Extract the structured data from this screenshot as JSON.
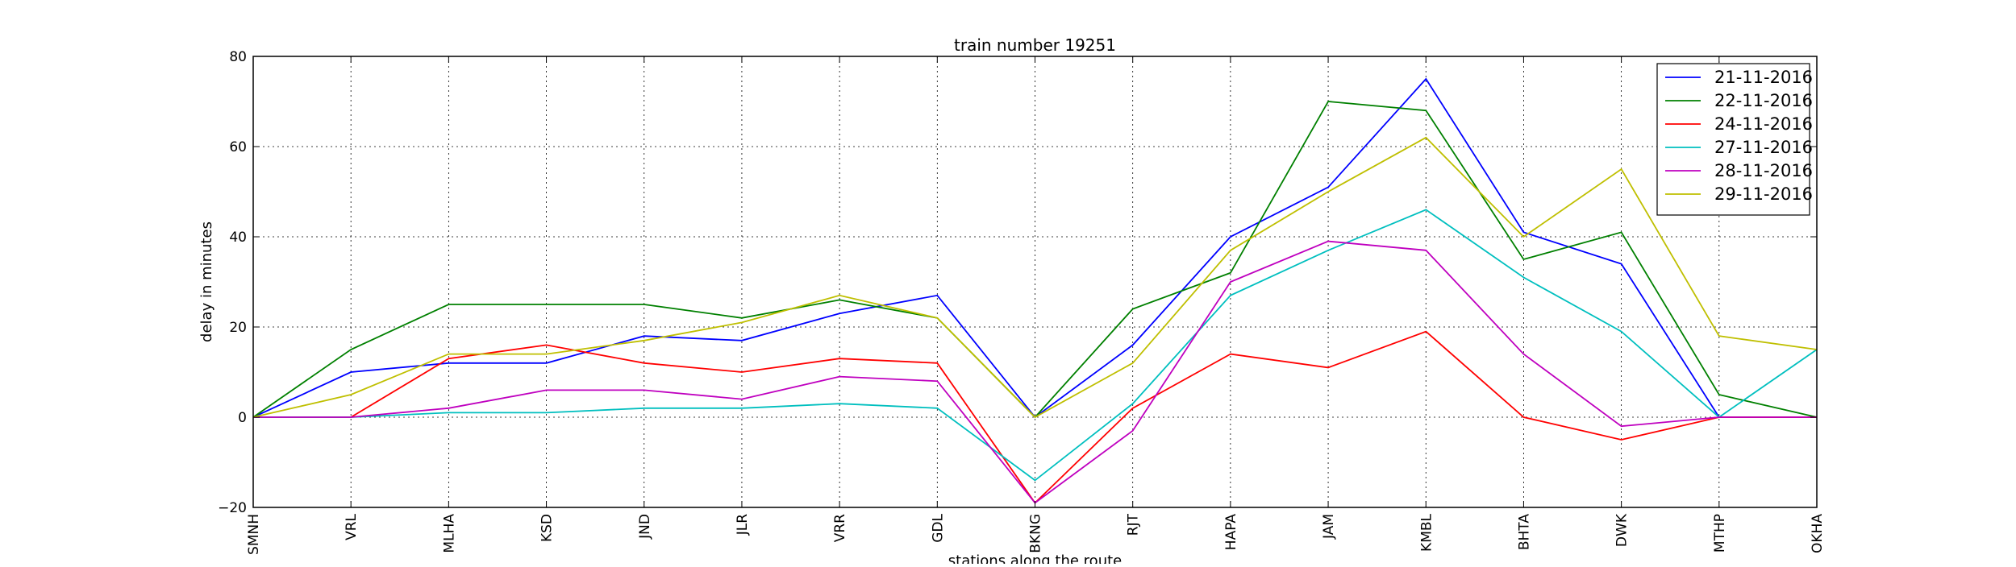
{
  "chart_data": {
    "type": "line",
    "title": "train number 19251",
    "xlabel": "stations along the route",
    "ylabel": "delay in minutes",
    "categories": [
      "SMNH",
      "VRL",
      "MLHA",
      "KSD",
      "JND",
      "JLR",
      "VRR",
      "GDL",
      "BKNG",
      "RJT",
      "HAPA",
      "JAM",
      "KMBL",
      "BHTA",
      "DWK",
      "MTHP",
      "OKHA"
    ],
    "ylim": [
      -20,
      80
    ],
    "yticks": [
      -20,
      0,
      20,
      40,
      60,
      80
    ],
    "grid": true,
    "legend_position": "top-right",
    "series": [
      {
        "name": "21-11-2016",
        "color": "#0000ff",
        "values": [
          0,
          10,
          12,
          12,
          18,
          17,
          23,
          27,
          0,
          16,
          40,
          51,
          75,
          41,
          34,
          0,
          0
        ]
      },
      {
        "name": "22-11-2016",
        "color": "#008000",
        "values": [
          0,
          15,
          25,
          25,
          25,
          22,
          26,
          22,
          0,
          24,
          32,
          70,
          68,
          35,
          41,
          5,
          0
        ]
      },
      {
        "name": "24-11-2016",
        "color": "#ff0000",
        "values": [
          0,
          0,
          13,
          16,
          12,
          10,
          13,
          12,
          -19,
          2,
          14,
          11,
          19,
          0,
          -5,
          0,
          0
        ]
      },
      {
        "name": "27-11-2016",
        "color": "#00bfbf",
        "values": [
          0,
          0,
          1,
          1,
          2,
          2,
          3,
          2,
          -14,
          3,
          27,
          37,
          46,
          31,
          19,
          0,
          15
        ]
      },
      {
        "name": "28-11-2016",
        "color": "#bf00bf",
        "values": [
          0,
          0,
          2,
          6,
          6,
          4,
          9,
          8,
          -19,
          -3,
          30,
          39,
          37,
          14,
          -2,
          0,
          0
        ]
      },
      {
        "name": "29-11-2016",
        "color": "#bfbf00",
        "values": [
          0,
          5,
          14,
          14,
          17,
          21,
          27,
          22,
          0,
          12,
          37,
          50,
          62,
          40,
          55,
          18,
          15
        ]
      }
    ]
  }
}
